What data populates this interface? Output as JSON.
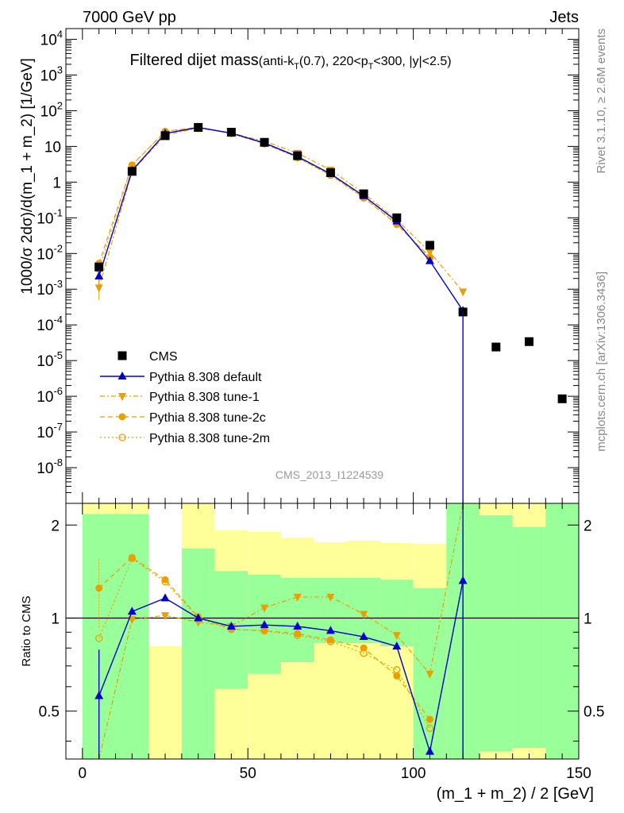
{
  "header": {
    "left": "7000 GeV pp",
    "right": "Jets"
  },
  "side_labels": {
    "rivet": "Rivet 3.1.10, ≥ 2.6M events",
    "mcplots": "mcplots.cern.ch [arXiv:1306.3436]"
  },
  "analysis_id": "CMS_2013_I1224539",
  "colors": {
    "cms": "#000000",
    "default": "#0000cc",
    "tunes": "#e8a000",
    "band_inner": "#99ff99",
    "band_outer": "#ffff99"
  },
  "chart_data": [
    {
      "type": "line",
      "panel": "main",
      "title": "Filtered dijet mass",
      "title_suffix_parts": [
        "(anti-k",
        "T",
        "(0.7), 220<p",
        "T",
        "<300, |y|<2.5)"
      ],
      "ylabel": "1000/σ 2dσ)/d(m_1 + m_2) [1/GeV]",
      "yscale": "log",
      "ylim": [
        1e-09,
        20000
      ],
      "xlim": [
        -5,
        150
      ],
      "y_ticks": [
        "10^-8",
        "10^-7",
        "10^-6",
        "10^-5",
        "10^-4",
        "10^-3",
        "10^-2",
        "10^-1",
        "1",
        "10",
        "10^2",
        "10^3",
        "10^4"
      ],
      "legend_position": "middle-left",
      "series": [
        {
          "name": "CMS",
          "style": "black-square",
          "x": [
            5,
            15,
            25,
            35,
            45,
            55,
            65,
            75,
            85,
            95,
            105,
            115,
            125,
            135,
            145
          ],
          "y": [
            0.0042,
            2.0,
            20.0,
            34.0,
            25.0,
            13.0,
            5.5,
            1.85,
            0.47,
            0.1,
            0.017,
            0.00023,
            2.4e-05,
            3.4e-05,
            8.5e-07
          ]
        },
        {
          "name": "Pythia 8.308 default",
          "style": "blue-triangle-up",
          "x": [
            5,
            15,
            25,
            35,
            45,
            55,
            65,
            75,
            85,
            95,
            105,
            115
          ],
          "y": [
            0.0023,
            2.1,
            23.0,
            34.0,
            23.5,
            12.5,
            5.2,
            1.7,
            0.41,
            0.08,
            0.0062,
            0.00025
          ]
        },
        {
          "name": "Pythia 8.308 tune-1",
          "style": "orange-triangle-down",
          "x": [
            5,
            15,
            25,
            35,
            45,
            55,
            65,
            75,
            85,
            95,
            105,
            115
          ],
          "y": [
            0.0011,
            2.0,
            20.5,
            33.0,
            23.5,
            14.0,
            6.5,
            2.2,
            0.48,
            0.088,
            0.011,
            0.00085
          ]
        },
        {
          "name": "Pythia 8.308 tune-2c",
          "style": "orange-dot",
          "x": [
            5,
            15,
            25,
            35,
            45,
            55,
            65,
            75,
            85,
            95,
            105
          ],
          "y": [
            0.0053,
            3.0,
            26.5,
            34.5,
            23.0,
            12.0,
            4.95,
            1.57,
            0.375,
            0.065,
            0.008
          ]
        },
        {
          "name": "Pythia 8.308 tune-2m",
          "style": "orange-open-circle",
          "x": [
            5,
            15,
            25,
            35,
            45,
            55,
            65,
            75,
            85,
            95,
            105
          ],
          "y": [
            0.0036,
            3.0,
            26.0,
            34.0,
            23.0,
            11.8,
            4.85,
            1.56,
            0.36,
            0.07,
            0.0075
          ]
        }
      ]
    },
    {
      "type": "line",
      "panel": "ratio",
      "ylabel": "Ratio to CMS",
      "xlabel": "(m_1 + m_2) / 2 [GeV]",
      "xlim": [
        -5,
        150
      ],
      "ylim": [
        0.35,
        2.35
      ],
      "x_ticks": [
        0,
        50,
        100,
        150
      ],
      "y_ticks": [
        0.5,
        1,
        2
      ],
      "bands": {
        "x_edges": [
          0,
          10,
          20,
          30,
          40,
          50,
          60,
          70,
          80,
          90,
          100,
          110,
          120,
          130,
          140,
          150
        ],
        "inner_low": [
          0.35,
          0.35,
          0.35,
          0.35,
          0.35,
          0.35,
          0.35,
          0.35,
          0.35,
          0.35,
          0.35,
          0.35,
          0.35,
          0.35,
          0.35
        ],
        "inner_high": [
          2.35,
          2.35,
          0.35,
          1.68,
          1.42,
          1.38,
          1.35,
          1.35,
          1.35,
          1.33,
          1.25,
          2.35,
          2.35,
          2.35,
          2.35
        ],
        "outer_low": [
          0.35,
          0.35,
          0.55,
          0.35,
          0.35,
          0.35,
          0.35,
          0.35,
          0.35,
          0.35,
          0.35,
          0.35,
          0.35,
          0.35,
          0.35
        ],
        "outer_high": [
          2.35,
          2.35,
          0.35,
          2.35,
          1.92,
          1.9,
          1.82,
          1.76,
          1.78,
          1.75,
          1.74,
          2.35,
          2.35,
          2.35,
          2.35
        ],
        "inner_low_gap": [
          0.35,
          0.35,
          0.81,
          0.35,
          0.35,
          0.35,
          0.35,
          0.35,
          0.35,
          0.35,
          0.35,
          0.35,
          0.35,
          0.35,
          0.35
        ],
        "lower_yellow_top": [
          0.35,
          0.35,
          0.81,
          0.35,
          0.59,
          0.66,
          0.72,
          0.83,
          0.83,
          0.81,
          0.35,
          0.35,
          0.37,
          0.38,
          0.35
        ],
        "top_yellow_from": [
          2.17,
          2.17,
          2.35,
          2.35,
          2.35,
          2.35,
          2.35,
          2.35,
          2.35,
          2.35,
          2.35,
          2.35,
          2.15,
          1.97,
          2.35
        ]
      },
      "series": [
        {
          "name": "Pythia 8.308 default",
          "x": [
            5,
            15,
            25,
            35,
            45,
            55,
            65,
            75,
            85,
            95,
            105,
            115
          ],
          "y": [
            0.56,
            1.05,
            1.16,
            1.0,
            0.94,
            0.95,
            0.94,
            0.91,
            0.87,
            0.81,
            0.37,
            1.32
          ]
        },
        {
          "name": "Pythia 8.308 tune-1",
          "x": [
            5,
            15,
            25,
            35,
            45,
            55,
            65,
            75,
            85,
            95,
            105,
            115
          ],
          "y": [
            0.27,
            0.99,
            1.02,
            0.97,
            0.94,
            1.08,
            1.17,
            1.17,
            1.03,
            0.88,
            0.66,
            3.5
          ]
        },
        {
          "name": "Pythia 8.308 tune-2c",
          "x": [
            5,
            15,
            25,
            35,
            45,
            55,
            65,
            75,
            85,
            95,
            105
          ],
          "y": [
            1.25,
            1.57,
            1.33,
            1.01,
            0.92,
            0.91,
            0.89,
            0.85,
            0.8,
            0.65,
            0.47
          ]
        },
        {
          "name": "Pythia 8.308 tune-2m",
          "x": [
            5,
            15,
            25,
            35,
            45,
            55,
            65,
            75,
            85,
            95,
            105
          ],
          "y": [
            0.86,
            1.56,
            1.31,
            1.0,
            0.92,
            0.91,
            0.88,
            0.84,
            0.77,
            0.68,
            0.44
          ]
        }
      ]
    }
  ]
}
